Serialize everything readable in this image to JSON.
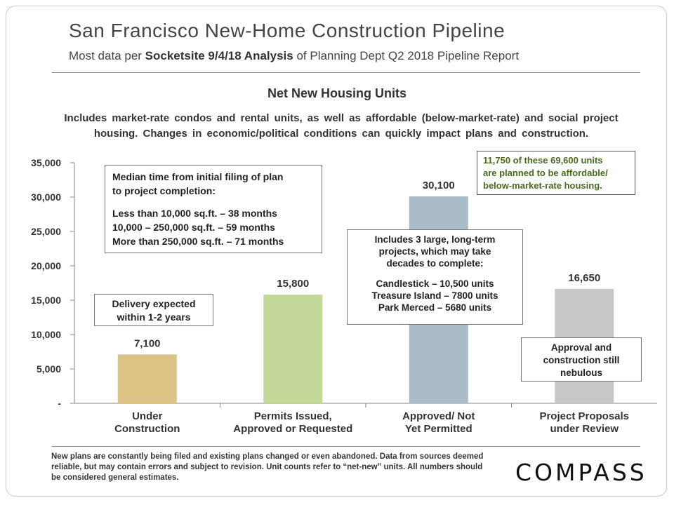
{
  "header": {
    "title": "San Francisco New-Home Construction Pipeline",
    "subtitle_prefix": "Most data per ",
    "subtitle_bold": "Socketsite 9/4/18 Analysis",
    "subtitle_suffix": " of Planning Dept Q2 2018 Pipeline Report"
  },
  "chart_data": {
    "type": "bar",
    "title": "Net New Housing Units",
    "subtitle": "Includes market-rate condos and rental units, as well as affordable (below-market-rate) and social project housing. Changes in economic/political conditions can quickly impact plans and construction.",
    "categories": [
      [
        "Under",
        "Construction"
      ],
      [
        "Permits Issued,",
        "Approved or Requested"
      ],
      [
        "Approved/ Not",
        "Yet Permitted"
      ],
      [
        "Project Proposals",
        "under Review"
      ]
    ],
    "values": [
      7100,
      15800,
      30100,
      16650
    ],
    "value_labels": [
      "7,100",
      "15,800",
      "30,100",
      "16,650"
    ],
    "colors": [
      "#dcc385",
      "#c4d89a",
      "#a9bcc8",
      "#c8c8c8"
    ],
    "ylim": [
      0,
      35000
    ],
    "yticks": [
      0,
      5000,
      10000,
      15000,
      20000,
      25000,
      30000,
      35000
    ],
    "ytick_labels": [
      "-",
      "5,000",
      "10,000",
      "15,000",
      "20,000",
      "25,000",
      "30,000",
      "35,000"
    ],
    "xlabel": "",
    "ylabel": "",
    "grid": false
  },
  "annotations": {
    "median": {
      "heading": [
        "Median time from initial filing of plan",
        "to project completion:"
      ],
      "lines": [
        "Less than 10,000 sq.ft. – 38 months",
        "10,000 – 250,000 sq.ft. – 59 months",
        "More than 250,000 sq.ft. – 71 months"
      ]
    },
    "delivery": [
      "Delivery expected",
      "within 1-2 years"
    ],
    "large_projects": {
      "heading": [
        "Includes 3 large, long-term",
        "projects, which may take",
        "decades to complete:"
      ],
      "lines": [
        "Candlestick – 10,500 units",
        "Treasure Island – 7800 units",
        "Park Merced – 5680 units"
      ]
    },
    "approval": [
      "Approval and",
      "construction still",
      "nebulous"
    ],
    "affordable": [
      "11,750 of these 69,600 units",
      "are planned to be affordable/",
      "below-market-rate housing."
    ],
    "affordable_color": "#4a6a1e"
  },
  "footnote": "New plans are constantly being filed and existing plans changed or even abandoned. Data from sources deemed reliable, but may contain errors and subject to revision. Unit counts refer to “net-new” units. All numbers should be considered general estimates.",
  "logo": "COMPASS"
}
